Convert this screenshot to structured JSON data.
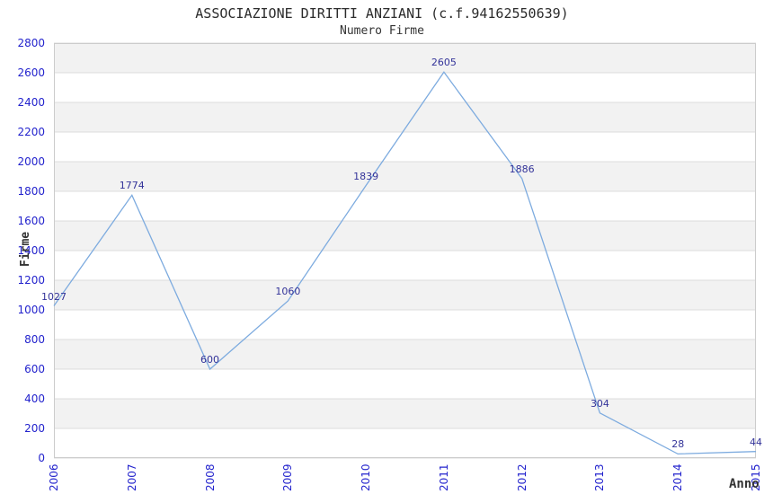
{
  "chart": {
    "title": "ASSOCIAZIONE DIRITTI ANZIANI (c.f.94162550639)",
    "subtitle": "Numero Firme",
    "xlabel": "Anno",
    "ylabel": "Firme"
  },
  "chart_data": {
    "type": "line",
    "title": "ASSOCIAZIONE DIRITTI ANZIANI (c.f.94162550639)",
    "subtitle": "Numero Firme",
    "xlabel": "Anno",
    "ylabel": "Firme",
    "categories": [
      "2006",
      "2007",
      "2008",
      "2009",
      "2010",
      "2011",
      "2012",
      "2013",
      "2014",
      "2015"
    ],
    "series": [
      {
        "name": "Numero Firme",
        "values": [
          1027,
          1774,
          600,
          1060,
          1839,
          2605,
          1886,
          304,
          28,
          44
        ]
      }
    ],
    "ylim": [
      0,
      2800
    ],
    "ytick_step": 200,
    "grid": true,
    "legend_position": "none",
    "band_alternating": true,
    "colors": {
      "line": "#7dabdf",
      "tick_label": "#2323cd",
      "data_label": "#333399",
      "band_gray": "#f2f2f2",
      "band_white": "#ffffff",
      "gridline": "#dcdcdc",
      "plot_border": "#cccccc",
      "title_text": "#2b2b2b",
      "axis_title_text": "#333333"
    }
  }
}
